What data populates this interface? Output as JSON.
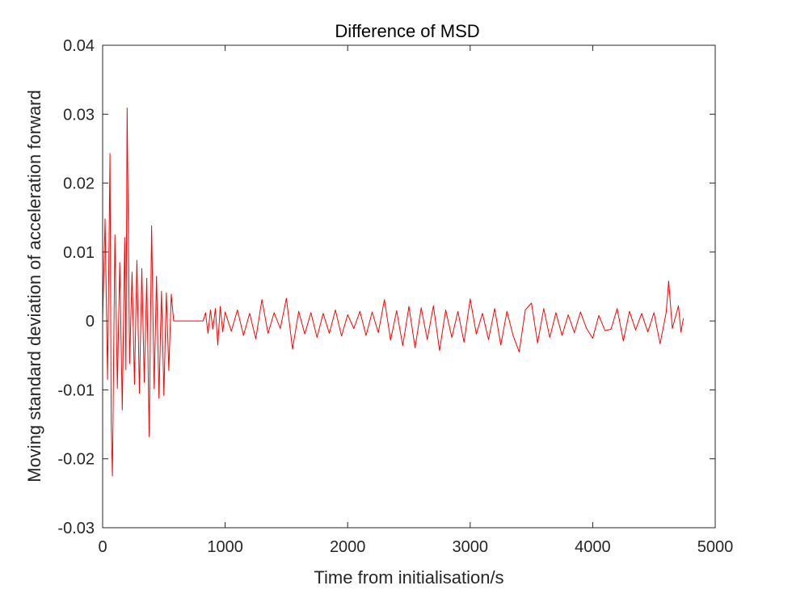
{
  "chart_data": {
    "type": "line",
    "title": "Difference of MSD",
    "xlabel": "Time from initialisation/s",
    "ylabel": "Moving standard deviation of acceleration forward",
    "xlim": [
      0,
      5000
    ],
    "ylim": [
      -0.03,
      0.04
    ],
    "xticks": [
      "0",
      "1000",
      "2000",
      "3000",
      "4000",
      "5000"
    ],
    "yticks": [
      "-0.03",
      "-0.02",
      "-0.01",
      "0",
      "0.01",
      "0.02",
      "0.03",
      "0.04"
    ],
    "grid": false,
    "series": [
      {
        "color": "#ff0000",
        "x": [
          0,
          20,
          40,
          60,
          70,
          80,
          100,
          120,
          140,
          160,
          180,
          190,
          200,
          220,
          240,
          260,
          280,
          300,
          320,
          340,
          360,
          380,
          400,
          420,
          440,
          460,
          480,
          500,
          520,
          540,
          560,
          580,
          820,
          840,
          860,
          880,
          900,
          920,
          940,
          960,
          980,
          1000,
          1050,
          1100,
          1150,
          1200,
          1250,
          1300,
          1350,
          1400,
          1450,
          1500,
          1550,
          1600,
          1650,
          1700,
          1750,
          1800,
          1850,
          1900,
          1950,
          2000,
          2050,
          2100,
          2150,
          2200,
          2250,
          2300,
          2350,
          2400,
          2450,
          2500,
          2550,
          2600,
          2650,
          2700,
          2750,
          2800,
          2850,
          2900,
          2950,
          3000,
          3050,
          3100,
          3150,
          3200,
          3250,
          3300,
          3350,
          3400,
          3450,
          3500,
          3550,
          3600,
          3650,
          3700,
          3750,
          3800,
          3850,
          3900,
          3950,
          4000,
          4050,
          4100,
          4150,
          4200,
          4250,
          4300,
          4350,
          4400,
          4450,
          4500,
          4550,
          4600,
          4620,
          4650,
          4700,
          4720,
          4740
        ],
        "values": [
          0,
          0.0148,
          -0.0085,
          0.0243,
          -0.0148,
          -0.0225,
          0.0125,
          -0.0098,
          0.0085,
          -0.0129,
          0.0121,
          -0.0071,
          0.0309,
          -0.0062,
          0.0071,
          -0.0092,
          0.0088,
          -0.0105,
          0.0076,
          -0.0089,
          0.0062,
          -0.0168,
          0.0138,
          -0.0098,
          0.0065,
          -0.0112,
          0.0043,
          -0.0108,
          0.0041,
          -0.0072,
          0.0039,
          0,
          0,
          0.0012,
          -0.0018,
          0.0016,
          -0.0012,
          0.0018,
          -0.0035,
          0.0021,
          -0.0016,
          0.0013,
          -0.0015,
          0.0016,
          -0.0021,
          0.0011,
          -0.0026,
          0.0031,
          -0.0018,
          0.0012,
          -0.0011,
          0.0033,
          -0.0041,
          0.0014,
          -0.0019,
          0.0012,
          -0.0024,
          0.0011,
          -0.0018,
          0.0016,
          -0.0022,
          0.0009,
          -0.0011,
          0.0014,
          -0.0021,
          0.0013,
          -0.0017,
          0.0031,
          -0.0028,
          0.0015,
          -0.0036,
          0.0021,
          -0.0039,
          0.0019,
          -0.0027,
          0.0022,
          -0.0043,
          0.0016,
          -0.0024,
          0.0014,
          -0.0031,
          0.0032,
          -0.0019,
          0.0011,
          -0.0027,
          0.0018,
          -0.0035,
          0.0014,
          -0.0021,
          -0.0045,
          0.0016,
          0.0026,
          -0.0032,
          0.0018,
          -0.0024,
          0.0012,
          -0.0021,
          0.0009,
          -0.0017,
          0.0013,
          -0.0011,
          -0.0025,
          0.0008,
          -0.0014,
          -0.0012,
          0.0018,
          -0.0029,
          0.0014,
          -0.0013,
          0.0011,
          -0.0016,
          0.0012,
          -0.0033,
          0.0013,
          0.0058,
          -0.0011,
          0.0022,
          -0.0016,
          0.0004
        ]
      }
    ]
  }
}
